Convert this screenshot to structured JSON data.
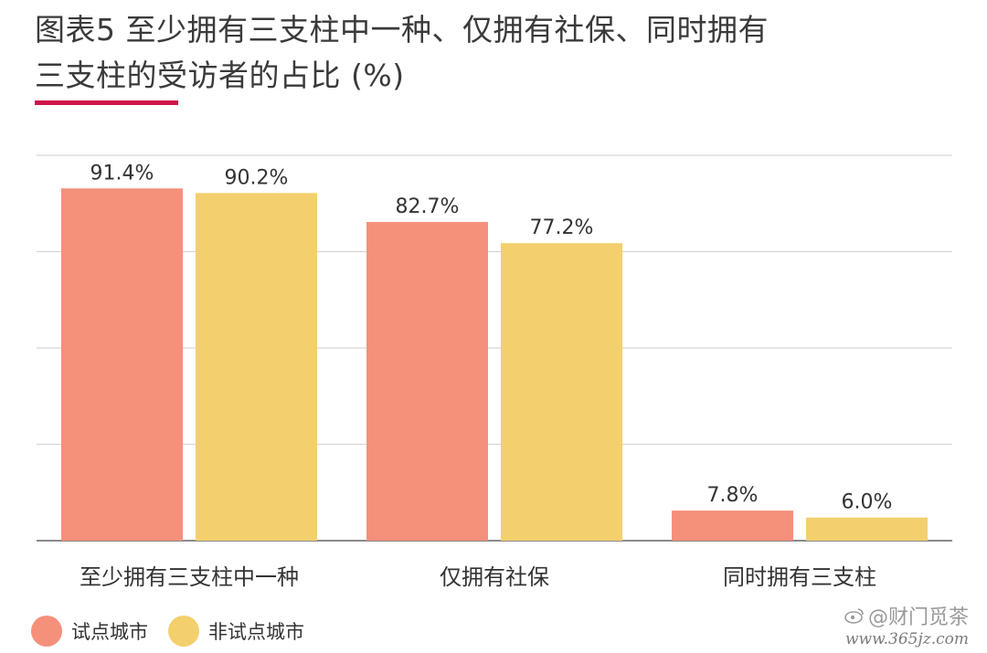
{
  "title": {
    "line1": "图表5 至少拥有三支柱中一种、仅拥有社保、同时拥有",
    "line2": "三支柱的受访者的占比 (%)",
    "rule_color": "#d0134a"
  },
  "colors": {
    "series_a": "#f5907b",
    "series_b": "#f3cf6e",
    "grid": "#d6d6d6",
    "axis": "#8a8a8a"
  },
  "chart_data": {
    "type": "bar",
    "title": "图表5 至少拥有三支柱中一种、仅拥有社保、同时拥有三支柱的受访者的占比 (%)",
    "categories": [
      "至少拥有三支柱中一种",
      "仅拥有社保",
      "同时拥有三支柱"
    ],
    "series": [
      {
        "name": "试点城市",
        "values": [
          91.4,
          82.7,
          7.8
        ],
        "labels": [
          "91.4%",
          "82.7%",
          "7.8%"
        ]
      },
      {
        "name": "非试点城市",
        "values": [
          90.2,
          77.2,
          6.0
        ],
        "labels": [
          "90.2%",
          "77.2%",
          "6.0%"
        ]
      }
    ],
    "ylim": [
      0,
      100
    ],
    "gridlines": [
      0,
      25,
      50,
      75,
      100
    ],
    "grid": true,
    "legend": "bottom-left"
  },
  "watermark": {
    "brand": "@财门觅茶",
    "url": "www.365jz.com",
    "icon": "weibo-icon"
  }
}
